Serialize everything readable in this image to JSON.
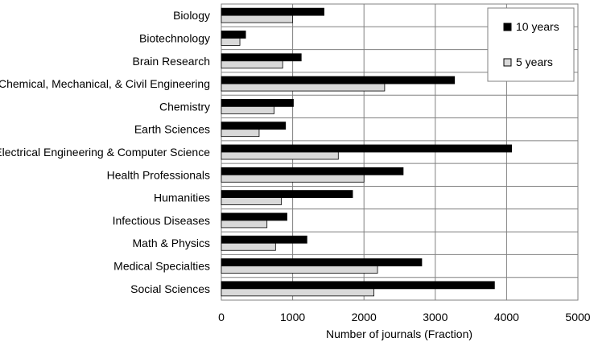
{
  "chart_data": {
    "type": "bar",
    "orientation": "horizontal",
    "categories": [
      "Biology",
      "Biotechnology",
      "Brain Research",
      "Chemical, Mechanical, & Civil Engineering",
      "Chemistry",
      "Earth Sciences",
      "Electrical Engineering & Computer Science",
      "Health Professionals",
      "Humanities",
      "Infectious Diseases",
      "Math & Physics",
      "Medical Specialties",
      "Social Sciences"
    ],
    "series": [
      {
        "name": "10 years",
        "color": "#000000",
        "values": [
          1440,
          340,
          1120,
          3270,
          1010,
          900,
          4070,
          2550,
          1840,
          920,
          1200,
          2810,
          3830
        ]
      },
      {
        "name": "5 years",
        "color": "#d9d9d9",
        "values": [
          1000,
          260,
          860,
          2290,
          740,
          530,
          1640,
          2000,
          840,
          640,
          760,
          2190,
          2140
        ]
      }
    ],
    "xlabel": "Number of journals (Fraction)",
    "xticks": [
      "0",
      "1000",
      "2000",
      "3000",
      "4000",
      "5000"
    ],
    "xlim": [
      0,
      5000
    ],
    "grid": true,
    "legend_position": "top-right"
  }
}
